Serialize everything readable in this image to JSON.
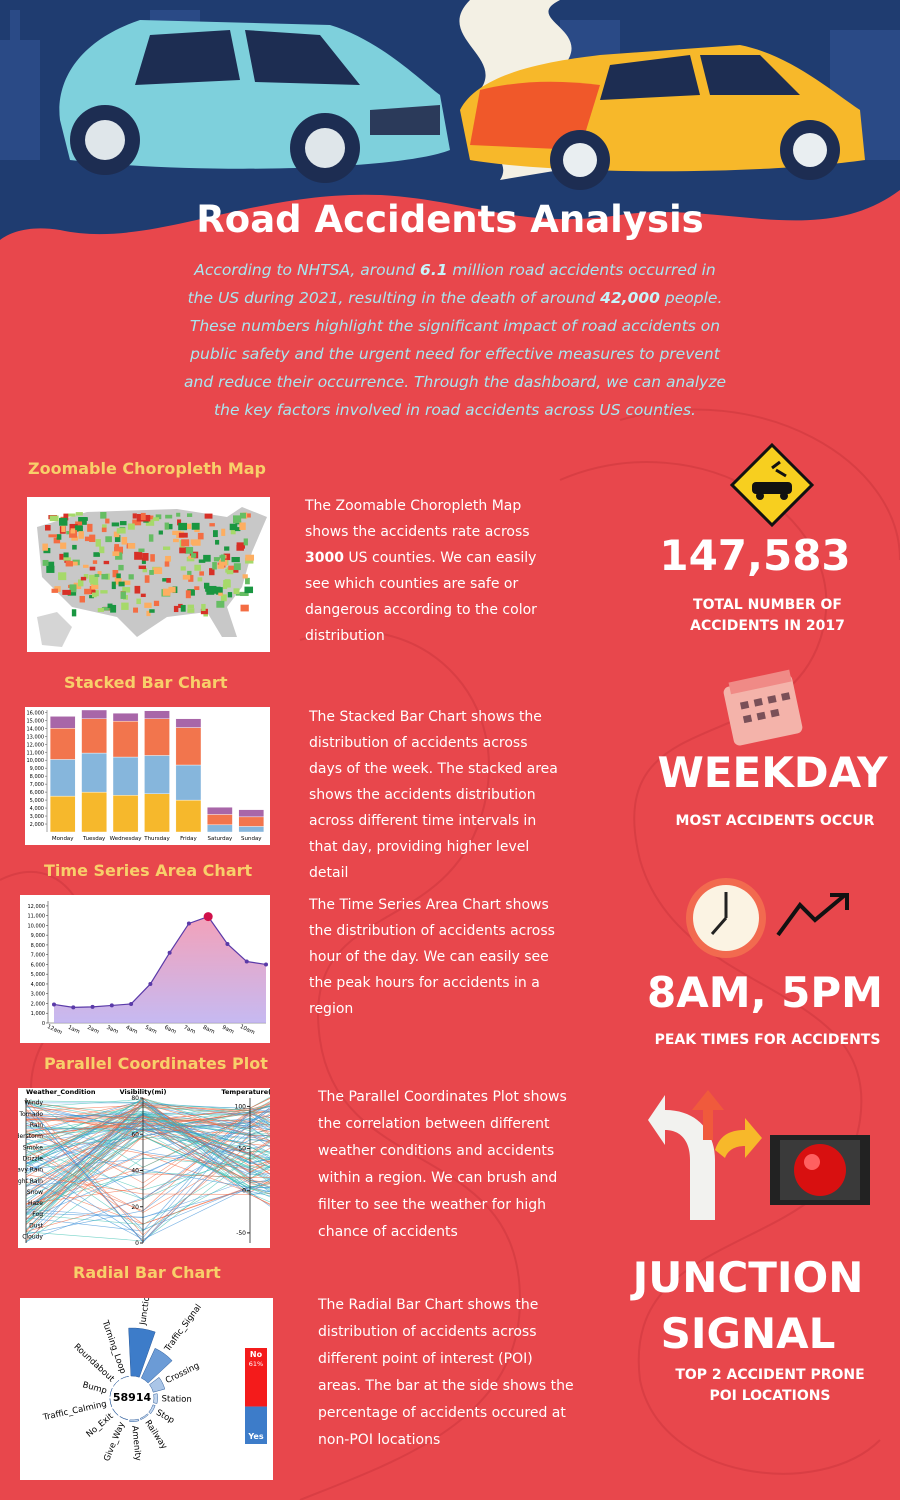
{
  "header": {
    "title": "Road Accidents Analysis",
    "intro": [
      "According to NHTSA, around ",
      "6.1",
      " million road accidents occurred in the US during 2021, resulting in the death of around ",
      "42,000",
      " people. These numbers highlight the significant impact of road accidents on public safety and the urgent need for effective measures to prevent and reduce their occurrence. Through the dashboard, we can analyze the key factors involved in road accidents across US counties."
    ]
  },
  "sections": [
    {
      "title": "Zoomable Choropleth Map",
      "description": [
        "The Zoomable Choropleth Map shows the accidents rate across ",
        "3000",
        " US counties. We can easily see which counties are safe or dangerous according to the color distribution"
      ]
    },
    {
      "title": "Stacked Bar Chart",
      "description": [
        "The Stacked Bar Chart shows the distribution of accidents across days of the week. The stacked area shows the accidents distribution across different time intervals in that day, providing higher level detail"
      ],
      "chart": {
        "type": "bar",
        "categories": [
          "Monday",
          "Tuesday",
          "Wednesday",
          "Thursday",
          "Friday",
          "Saturday",
          "Sunday"
        ],
        "series": [
          {
            "color": "#f6b82c",
            "values": [
              5500,
              6000,
              5600,
              5800,
              5000,
              1000,
              900
            ]
          },
          {
            "color": "#86b6dc",
            "values": [
              4600,
              4900,
              4800,
              4800,
              4400,
              900,
              800
            ]
          },
          {
            "color": "#f2754d",
            "values": [
              3900,
              4300,
              4500,
              4600,
              4700,
              1300,
              1200
            ]
          },
          {
            "color": "#a866a8",
            "values": [
              1500,
              1100,
              1000,
              1000,
              1100,
              900,
              900
            ]
          }
        ],
        "ylim": [
          1000,
          16300
        ],
        "yticks": [
          {
            "value": 2000,
            "label": "2,000"
          },
          {
            "value": 3000,
            "label": "3,000"
          },
          {
            "value": 4000,
            "label": "4,000"
          },
          {
            "value": 5000,
            "label": "5,000"
          },
          {
            "value": 6000,
            "label": "6,000"
          },
          {
            "value": 7000,
            "label": "7,000"
          },
          {
            "value": 8000,
            "label": "8,000"
          },
          {
            "value": 9000,
            "label": "9,000"
          },
          {
            "value": 10000,
            "label": "10,000"
          },
          {
            "value": 11000,
            "label": "11,000"
          },
          {
            "value": 12000,
            "label": "12,000"
          },
          {
            "value": 13000,
            "label": "13,000"
          },
          {
            "value": 14000,
            "label": "14,000"
          },
          {
            "value": 15000,
            "label": "15,000"
          },
          {
            "value": 16000,
            "label": "16,000"
          }
        ]
      }
    },
    {
      "title": "Time Series Area Chart",
      "description": [
        "The Time Series Area Chart shows the distribution of accidents across hour of the day. We can easily see the peak hours for accidents in a region"
      ],
      "chart": {
        "type": "area",
        "categories": [
          "12am",
          "1am",
          "2am",
          "3am",
          "4am",
          "5am",
          "6am",
          "7am",
          "8am",
          "9am",
          "10am",
          null
        ],
        "values": [
          1900,
          1600,
          1650,
          1800,
          1950,
          4000,
          7200,
          10200,
          10900,
          8100,
          6300,
          6000
        ],
        "color": "#5a3aa8",
        "ylim": [
          0,
          12500
        ],
        "yticks": [
          0,
          {
            "value": 1000,
            "label": "1,000"
          },
          {
            "value": 2000,
            "label": "2,000"
          },
          {
            "value": 3000,
            "label": "3,000"
          },
          {
            "value": 4000,
            "label": "4,000"
          },
          {
            "value": 5000,
            "label": "5,000"
          },
          {
            "value": 6000,
            "label": "6,000"
          },
          {
            "value": 7000,
            "label": "7,000"
          },
          {
            "value": 8000,
            "label": "8,000"
          },
          {
            "value": 9000,
            "label": "9,000"
          },
          {
            "value": 10000,
            "label": "10,000"
          },
          {
            "value": 11000,
            "label": "11,000"
          },
          {
            "value": 12000,
            "label": "12,000"
          }
        ]
      }
    },
    {
      "title": "Parallel Coordinates Plot",
      "description": [
        "The Parallel Coordinates Plot shows the correlation between different weather conditions and accidents within a region. We can brush and filter to see the weather for high chance of accidents"
      ],
      "chart": {
        "type": "parallel",
        "axes": [
          "Weather_Condition",
          "Visibility(mi)",
          "Temperature(F)"
        ],
        "categories": [
          "Windy",
          "Tornado",
          "Rain",
          "Thunderstorm",
          "Smoke",
          "Drizzle",
          "Heavy Rain",
          "Light Rain",
          "Snow",
          "Haze",
          "Fog",
          "Dust",
          "Cloudy"
        ],
        "ylim": [
          0,
          80
        ],
        "yticks": [
          0,
          20,
          40,
          60,
          80
        ],
        "y2lim": [
          -62,
          110
        ],
        "y2ticks": [
          -50,
          0,
          50,
          100
        ]
      }
    },
    {
      "title": "Radial Bar Chart",
      "description": [
        "The Radial Bar Chart shows the distribution of accidents across different point of interest (POI) areas. The bar at the side shows the percentage of accidents occured at non-POI locations"
      ],
      "chart": {
        "type": "radial-bar",
        "center_label": "58914",
        "categories": [
          "Junction",
          "Traffic_Signal",
          "Crossing",
          "Station",
          "Stop",
          "Railway",
          "Amenity",
          "Give_Way",
          "No_Exit",
          "Traffic_Calming",
          "Bump",
          "Roundabout",
          "Turning_Loop"
        ],
        "values": [
          12000,
          8200,
          3000,
          900,
          600,
          350,
          450,
          60,
          70,
          40,
          30,
          10,
          5
        ],
        "color": "#3d7cc9",
        "ratio": {
          "categories": [
            "No",
            "Yes"
          ],
          "values": [
            61,
            39
          ],
          "value_labels": [
            "61%",
            null
          ],
          "colors": [
            "#f41b1b",
            "#3d7cc9"
          ]
        }
      }
    }
  ],
  "stats": [
    {
      "value": "147,583",
      "label": "TOTAL NUMBER OF ACCIDENTS IN 2017"
    },
    {
      "value": "WEEKDAY",
      "label": "MOST ACCIDENTS OCCUR"
    },
    {
      "value": "8AM, 5PM",
      "label": "PEAK TIMES FOR ACCIDENTS"
    },
    {
      "value": "JUNCTION SIGNAL",
      "label": "TOP 2 ACCIDENT PRONE POI LOCATIONS"
    }
  ]
}
